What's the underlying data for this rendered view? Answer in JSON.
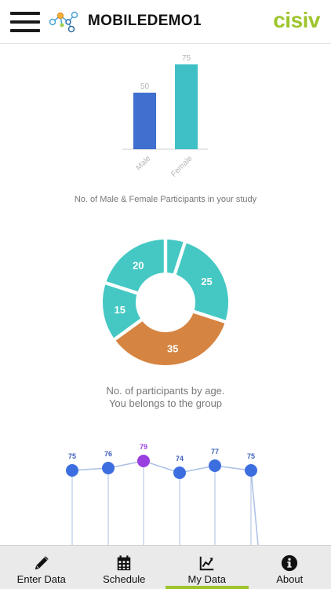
{
  "header": {
    "title": "MOBILEDEMO1",
    "brand": "cisiv"
  },
  "colors": {
    "accent": "#9dc52b",
    "male": "#3f6fcf",
    "female": "#3fbfc6",
    "teal": "#45c8c4",
    "orange": "#d68441",
    "point": "#3d6ee0",
    "point_highlight": "#9a3fe0",
    "line": "#a9bfe6"
  },
  "captions": {
    "bar_chart": "No. of Male & Female Participants in your study",
    "donut_line1": "No. of participants by age.",
    "donut_line2": "You belongs to the group"
  },
  "chart_data": [
    {
      "type": "bar",
      "categories": [
        "Male",
        "Female"
      ],
      "values": [
        50,
        75
      ],
      "title": "No. of Male & Female Participants in your study",
      "ylim": [
        0,
        75
      ]
    },
    {
      "type": "pie",
      "subtype": "donut",
      "labels": [
        "",
        "25",
        "35",
        "15",
        "20"
      ],
      "values": [
        5,
        25,
        35,
        15,
        20
      ],
      "highlight_index": 2,
      "title": "No. of participants by age."
    },
    {
      "type": "line",
      "values": [
        75,
        76,
        79,
        74,
        77,
        75
      ],
      "highlight_index": 2
    }
  ],
  "tabs": [
    {
      "label": "Enter Data",
      "icon": "pencil-icon",
      "active": false
    },
    {
      "label": "Schedule",
      "icon": "calendar-icon",
      "active": false
    },
    {
      "label": "My Data",
      "icon": "line-chart-icon",
      "active": true
    },
    {
      "label": "About",
      "icon": "info-icon",
      "active": false
    }
  ]
}
